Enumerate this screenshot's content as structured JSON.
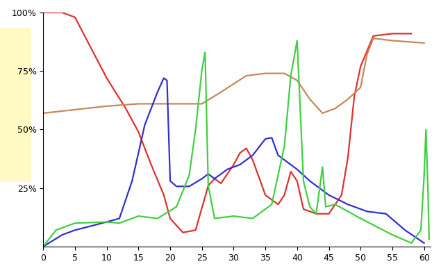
{
  "chart_data": {
    "type": "line",
    "xlim": [
      0,
      61
    ],
    "xticks": [
      0,
      5,
      10,
      15,
      20,
      25,
      30,
      35,
      40,
      45,
      50,
      55,
      60
    ],
    "ylim": [
      0,
      100
    ],
    "yticks": [
      {
        "value": 25,
        "label": "25%"
      },
      {
        "value": 50,
        "label": "50%"
      },
      {
        "value": 75,
        "label": "75%"
      },
      {
        "value": 100,
        "label": "100%"
      }
    ],
    "grid": false,
    "series": [
      {
        "color": "#e03030",
        "x": [
          0,
          3,
          5,
          10,
          13,
          15,
          17,
          19,
          20,
          22,
          24,
          26,
          27,
          28,
          30,
          31,
          32,
          33,
          35,
          37,
          38,
          39,
          40,
          41,
          43,
          45,
          47,
          48,
          49,
          50,
          52,
          55,
          58
        ],
        "values": [
          100,
          100,
          98,
          72,
          59,
          49,
          35,
          22,
          12,
          6,
          7,
          26,
          29,
          27,
          35,
          40,
          42,
          37,
          22,
          18,
          22,
          32,
          28,
          16,
          14,
          14,
          22,
          38,
          64,
          77,
          90,
          91,
          91
        ]
      },
      {
        "color": "#c8875a",
        "x": [
          0,
          5,
          10,
          15,
          20,
          25,
          28,
          32,
          35,
          38,
          40,
          42,
          44,
          46,
          48,
          50,
          51,
          52,
          55,
          60
        ],
        "values": [
          57,
          58.5,
          60,
          61,
          61,
          61,
          66,
          73,
          74,
          74,
          71,
          63,
          57,
          59,
          63,
          68,
          82,
          89,
          88,
          87
        ]
      },
      {
        "color": "#3030d0",
        "x": [
          0,
          3,
          5,
          10,
          12,
          14,
          16,
          18,
          19,
          19.5,
          20,
          21,
          23,
          25,
          26,
          27,
          29,
          31,
          33,
          35,
          36,
          37,
          38,
          40,
          42,
          45,
          48,
          51,
          54,
          57,
          60
        ],
        "values": [
          0,
          5,
          7,
          10.5,
          12,
          28,
          52,
          66,
          72,
          71,
          28,
          25.7,
          25.7,
          29,
          31,
          29,
          33,
          35,
          39,
          46,
          46.5,
          39,
          37,
          33,
          28,
          22,
          18,
          15,
          14,
          7,
          1.5
        ]
      },
      {
        "color": "#40d040",
        "x": [
          0,
          2,
          5,
          10,
          12,
          15,
          18,
          21,
          23,
          24,
          25,
          25.5,
          26,
          27,
          30,
          33,
          36,
          38,
          39,
          40,
          41,
          42,
          43,
          44,
          44.5,
          46,
          50,
          55,
          58,
          59.5,
          60,
          60.3,
          60.6,
          60.8
        ],
        "values": [
          0,
          7,
          10,
          10.5,
          10,
          13,
          12,
          17,
          30.5,
          50,
          75.5,
          83,
          26,
          12,
          13,
          12,
          18,
          43,
          73,
          88,
          28,
          17,
          14,
          34,
          17,
          18,
          12,
          5,
          1.5,
          7,
          30,
          50,
          25,
          3
        ]
      }
    ]
  }
}
